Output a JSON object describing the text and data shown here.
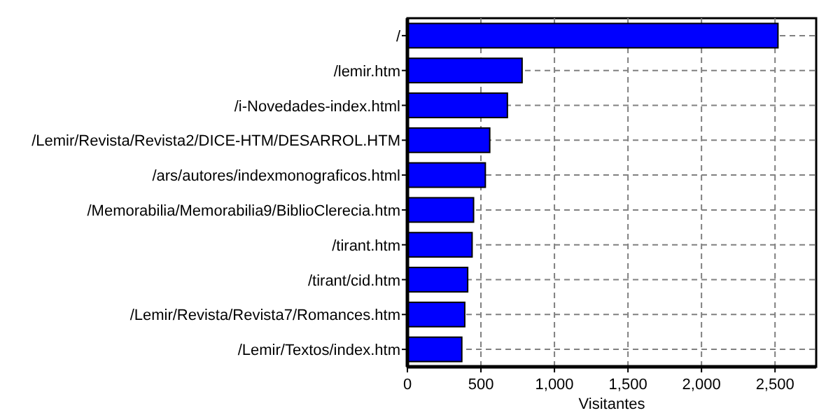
{
  "chart_data": {
    "type": "bar",
    "orientation": "horizontal",
    "xlabel": "Visitantes",
    "categories": [
      "/",
      "/lemir.htm",
      "/i-Novedades-index.html",
      "/Lemir/Revista/Revista2/DICE-HTM/DESARROL.HTM",
      "/ars/autores/indexmonograficos.html",
      "/Memorabilia/Memorabilia9/BiblioClerecia.htm",
      "/tirant.htm",
      "/tirant/cid.htm",
      "/Lemir/Revista/Revista7/Romances.htm",
      "/Lemir/Textos/index.htm"
    ],
    "values": [
      2520,
      780,
      680,
      560,
      530,
      450,
      440,
      410,
      390,
      370
    ],
    "color": "#0000ff",
    "xlim": [
      0,
      2780
    ],
    "xticks": [
      0,
      {
        "value": 500,
        "label": "500"
      },
      {
        "value": 1000,
        "label": "1,000"
      },
      {
        "value": 1500,
        "label": "1,500"
      },
      {
        "value": 2000,
        "label": "2,000"
      },
      {
        "value": 2500,
        "label": "2,500"
      }
    ],
    "grid": true
  }
}
